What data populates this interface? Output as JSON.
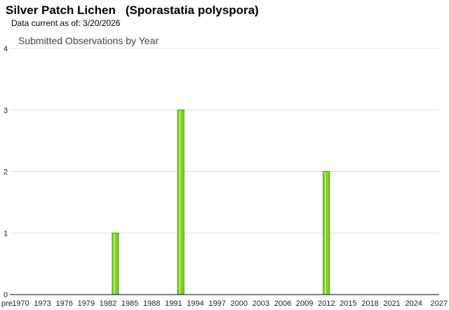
{
  "header": {
    "common_name": "Silver Patch Lichen",
    "scientific_name": "(Sporastatia polyspora)",
    "data_current": "Data current as of: 3/20/2026"
  },
  "chart_data": {
    "type": "bar",
    "title": "Submitted Observations by Year",
    "xlabel": "",
    "ylabel": "",
    "ylim": [
      0,
      4
    ],
    "yticks": [
      0,
      1,
      2,
      3,
      4
    ],
    "grid": true,
    "categories": [
      "pre",
      "1970",
      "1971",
      "1972",
      "1973",
      "1974",
      "1975",
      "1976",
      "1977",
      "1978",
      "1979",
      "1980",
      "1981",
      "1982",
      "1983",
      "1984",
      "1985",
      "1986",
      "1987",
      "1988",
      "1989",
      "1990",
      "1991",
      "1992",
      "1993",
      "1994",
      "1995",
      "1996",
      "1997",
      "1998",
      "1999",
      "2000",
      "2001",
      "2002",
      "2003",
      "2004",
      "2005",
      "2006",
      "2007",
      "2008",
      "2009",
      "2010",
      "2011",
      "2012",
      "2013",
      "2014",
      "2015",
      "2016",
      "2017",
      "2018",
      "2019",
      "2020",
      "2021",
      "2022",
      "2023",
      "2024",
      "2025",
      "2026",
      "2027"
    ],
    "tick_labels": [
      "pre",
      "1970",
      "1973",
      "1976",
      "1979",
      "1982",
      "1985",
      "1988",
      "1991",
      "1994",
      "1997",
      "2000",
      "2003",
      "2006",
      "2009",
      "2012",
      "2015",
      "2018",
      "2021",
      "2024",
      "2027"
    ],
    "values": [
      0,
      0,
      0,
      0,
      0,
      0,
      0,
      0,
      0,
      0,
      0,
      0,
      0,
      0,
      1,
      0,
      0,
      0,
      0,
      0,
      0,
      0,
      0,
      3,
      0,
      0,
      0,
      0,
      0,
      0,
      0,
      0,
      0,
      0,
      0,
      0,
      0,
      0,
      0,
      0,
      0,
      0,
      0,
      2,
      0,
      0,
      0,
      0,
      0,
      0,
      0,
      0,
      0,
      0,
      0,
      0,
      0,
      0,
      0
    ],
    "colors": {
      "bar_fill": "#7ed321",
      "bar_stroke": "#4a8f12",
      "bar_highlight": "#b6f07a",
      "grid": "#dddddd",
      "axis": "#000000"
    }
  }
}
